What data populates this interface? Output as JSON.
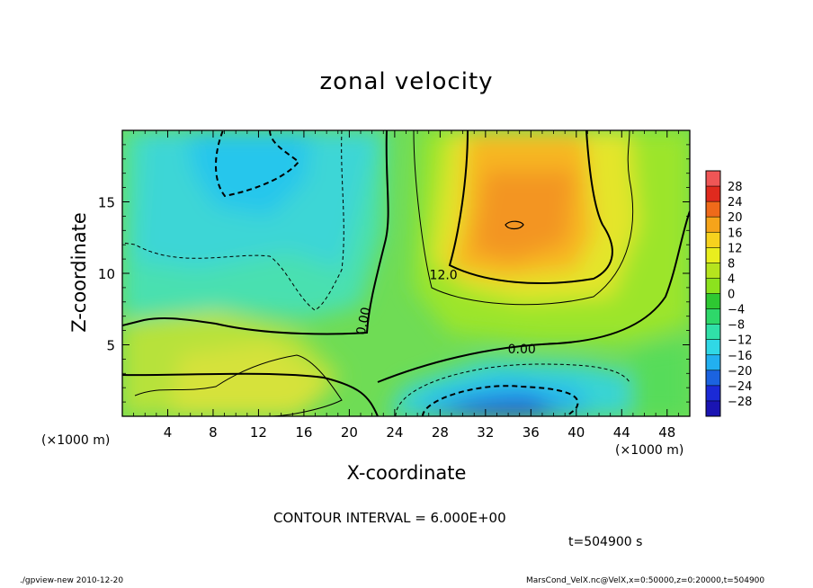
{
  "chart_data": {
    "type": "heatmap",
    "title": "zonal velocity",
    "xlabel": "X-coordinate",
    "ylabel": "Z-coordinate",
    "x_unit_label": "(×1000 m)",
    "xlim": [
      0,
      50
    ],
    "ylim": [
      0,
      20
    ],
    "x_ticks": [
      4,
      8,
      12,
      16,
      20,
      24,
      28,
      32,
      36,
      40,
      44,
      48
    ],
    "y_ticks": [
      5,
      10,
      15
    ],
    "x_tick_labels": [
      "4",
      "8",
      "12",
      "16",
      "20",
      "24",
      "28",
      "32",
      "36",
      "40",
      "44",
      "48"
    ],
    "y_tick_labels": [
      "5",
      "10",
      "15"
    ],
    "colorbar": {
      "labels": [
        "28",
        "24",
        "20",
        "16",
        "12",
        "8",
        "4",
        "0",
        "−4",
        "−8",
        "−12",
        "−16",
        "−20",
        "−24",
        "−28"
      ],
      "values": [
        28,
        24,
        20,
        16,
        12,
        8,
        4,
        0,
        -4,
        -8,
        -12,
        -16,
        -20,
        -24,
        -28
      ]
    },
    "contour_labels": [
      "12.0",
      "0.00",
      "0.00"
    ],
    "contour_label_values": [
      12,
      0,
      0
    ],
    "contour_interval": "CONTOUR INTERVAL = 6.000E+00",
    "time": "t=504900 s",
    "legend": "right",
    "grid": false
  },
  "footer": {
    "left": "./gpview-new   2010-12-20",
    "right": "MarsCond_VelX.nc@VelX,x=0:50000,z=0:20000,t=504900"
  },
  "colors": {
    "strong_positive": "#e02a1e",
    "positive": "#f6a41a",
    "zero": "#8ce21e",
    "negative": "#30d8e6",
    "strong_negative": "#1b2ad6"
  }
}
